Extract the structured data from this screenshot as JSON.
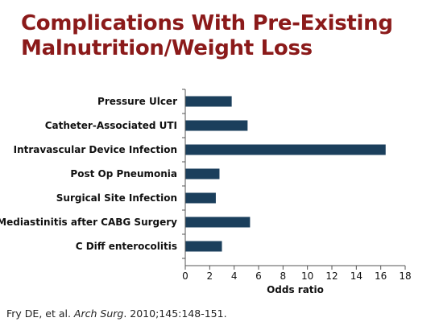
{
  "slide": {
    "title_lines": [
      "Complications With Pre-Existing",
      "Malnutrition/Weight Loss"
    ]
  },
  "citation": {
    "authors": "Fry DE, et al.",
    "journal": "Arch Surg",
    "details": ". 2010;145:148-151."
  },
  "colors": {
    "title": "#8b1a1a",
    "bar": "#1b3f5c",
    "axis": "#555555"
  },
  "chart_data": {
    "type": "bar",
    "orientation": "horizontal",
    "categories": [
      "Pressure Ulcer",
      "Catheter-Associated UTI",
      "Intravascular Device Infection",
      "Post Op Pneumonia",
      "Surgical Site Infection",
      "Mediastinitis after CABG Surgery",
      "C Diff enterocolitis"
    ],
    "values": [
      3.8,
      5.1,
      16.4,
      2.8,
      2.5,
      5.3,
      3.0
    ],
    "xlabel": "Odds ratio",
    "xlim": [
      0,
      18
    ],
    "xticks": [
      "0",
      "2",
      "4",
      "6",
      "8",
      "10",
      "12",
      "14",
      "16",
      "18"
    ],
    "grid": false,
    "legend": "none"
  }
}
